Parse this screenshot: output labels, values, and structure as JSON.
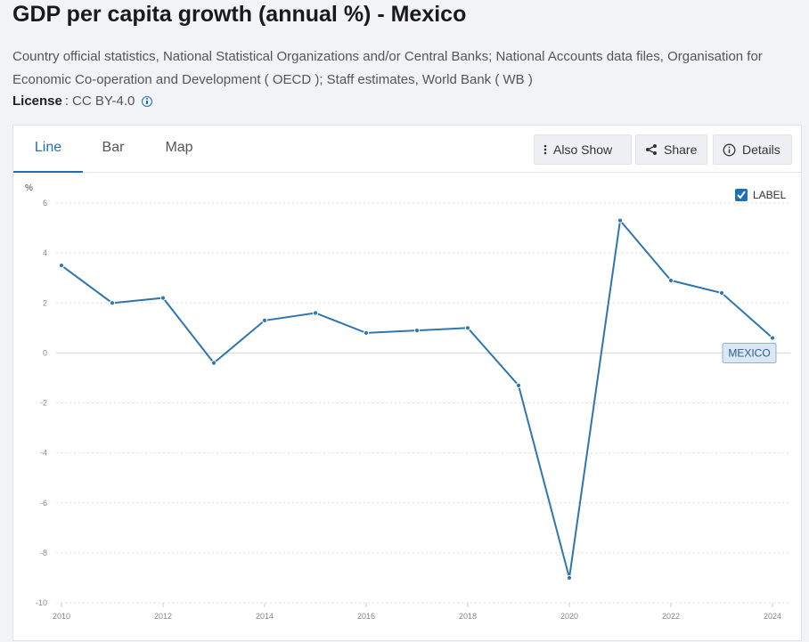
{
  "page": {
    "title": "GDP per capita growth (annual %) - Mexico",
    "source": "Country official statistics, National Statistical Organizations and/or Central Banks; National Accounts data files, Organisation for Economic Co-operation and Development ( OECD ); Staff estimates, World Bank ( WB )",
    "license_label": "License",
    "license_sep": ":",
    "license_value": "CC BY-4.0"
  },
  "tabs": [
    {
      "label": "Line",
      "active": true
    },
    {
      "label": "Bar",
      "active": false
    },
    {
      "label": "Map",
      "active": false
    }
  ],
  "toolbar": {
    "also_show_label": "Also Show",
    "share_label": "Share",
    "details_label": "Details"
  },
  "colors": {
    "accent": "#1f6fb7",
    "line": "#2f75b0",
    "tag_bg": "#dbe7f2",
    "tag_border": "#8fb2d2"
  },
  "chart_data": {
    "type": "line",
    "unit_label": "%",
    "x": [
      2010,
      2011,
      2012,
      2013,
      2014,
      2015,
      2016,
      2017,
      2018,
      2019,
      2020,
      2021,
      2022,
      2023,
      2024
    ],
    "series": [
      {
        "name": "MEXICO",
        "values": [
          3.5,
          2.0,
          2.2,
          -0.4,
          1.3,
          1.6,
          0.8,
          0.9,
          1.0,
          -1.3,
          -9.0,
          5.3,
          2.9,
          2.4,
          0.6
        ]
      }
    ],
    "yticks": [
      6,
      4,
      2,
      0,
      -2,
      -4,
      -6,
      -8,
      -10
    ],
    "xticks": [
      2010,
      2012,
      2014,
      2016,
      2018,
      2020,
      2022,
      2024
    ],
    "ylim": [
      -10,
      6
    ],
    "xlim": [
      2010,
      2024
    ],
    "grid": true,
    "legend": {
      "label": "LABEL",
      "checked": true,
      "position": "top-right"
    }
  }
}
